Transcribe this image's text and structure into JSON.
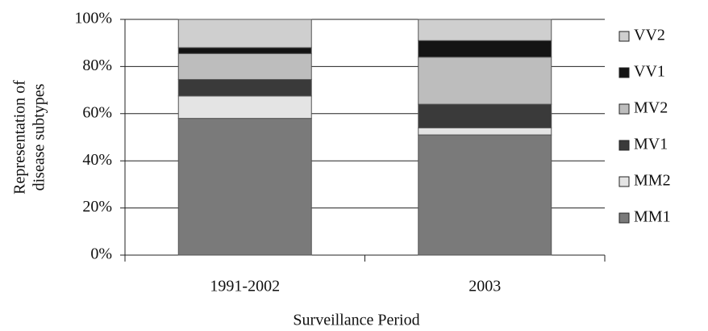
{
  "chart_data": {
    "type": "stacked_bar",
    "categories": [
      "1991-2002",
      "2003"
    ],
    "series": [
      {
        "name": "MM1",
        "color": "#7a7a7a",
        "values": [
          58,
          51
        ]
      },
      {
        "name": "MM2",
        "color": "#e4e4e4",
        "values": [
          9.5,
          3
        ]
      },
      {
        "name": "MV1",
        "color": "#3a3a3a",
        "values": [
          7,
          10
        ]
      },
      {
        "name": "MV2",
        "color": "#bdbdbd",
        "values": [
          11,
          20
        ]
      },
      {
        "name": "VV1",
        "color": "#141414",
        "values": [
          2.5,
          7
        ]
      },
      {
        "name": "VV2",
        "color": "#cfcfcf",
        "values": [
          12,
          9
        ]
      }
    ],
    "ylim": [
      0,
      100
    ],
    "yticks": [
      {
        "value": 0,
        "label": "0%"
      },
      {
        "value": 20,
        "label": "20%"
      },
      {
        "value": 40,
        "label": "40%"
      },
      {
        "value": 60,
        "label": "60%"
      },
      {
        "value": 80,
        "label": "80%"
      },
      {
        "value": 100,
        "label": "100%"
      }
    ],
    "y_label": [
      "Representation of",
      "disease subtypes"
    ],
    "x_label": "Surveillance Period",
    "grid": true,
    "legend": "right"
  }
}
